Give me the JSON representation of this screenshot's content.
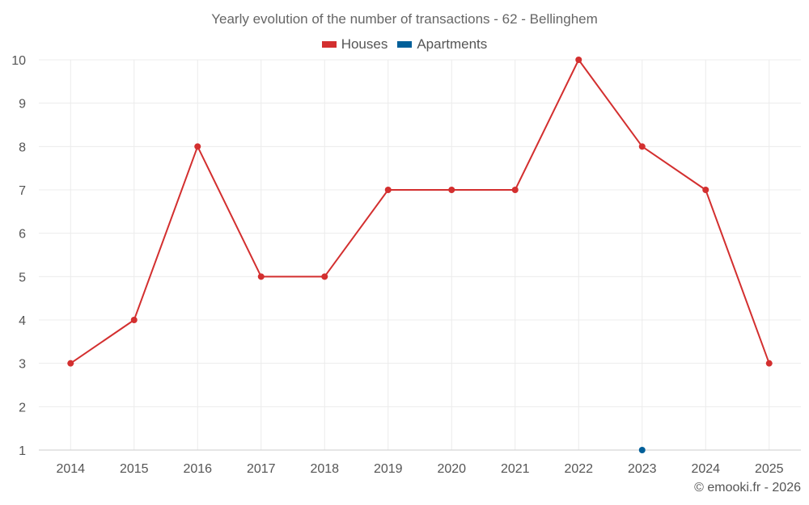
{
  "chart_data": {
    "type": "line",
    "title": "Yearly evolution of the number of transactions - 62 - Bellinghem",
    "categories": [
      "2014",
      "2015",
      "2016",
      "2017",
      "2018",
      "2019",
      "2020",
      "2021",
      "2022",
      "2023",
      "2024",
      "2025"
    ],
    "series": [
      {
        "name": "Houses",
        "color": "#d32f2f",
        "values": [
          3,
          4,
          8,
          5,
          5,
          7,
          7,
          7,
          10,
          8,
          7,
          3
        ]
      },
      {
        "name": "Apartments",
        "color": "#005f99",
        "values": [
          null,
          null,
          null,
          null,
          null,
          null,
          null,
          null,
          null,
          1,
          null,
          null
        ]
      }
    ],
    "ylim": [
      1,
      10
    ],
    "yticks": [
      1,
      2,
      3,
      4,
      5,
      6,
      7,
      8,
      9,
      10
    ],
    "grid": true,
    "legend": "top-center",
    "xlabel": "",
    "ylabel": ""
  },
  "credit": "© emooki.fr - 2026"
}
